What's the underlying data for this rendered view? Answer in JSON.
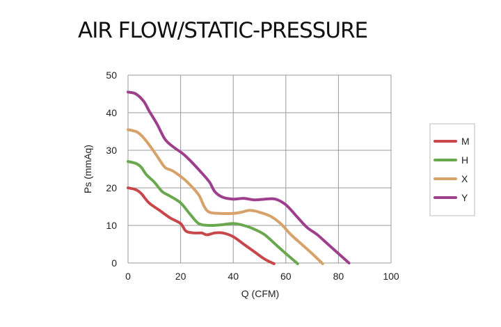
{
  "title": "AIR FLOW/STATIC-PRESSURE",
  "chart_data": {
    "type": "line",
    "title": "AIR FLOW/STATIC-PRESSURE",
    "xlabel": "Q (CFM)",
    "ylabel": "Ps (mmAq)",
    "xlim": [
      0,
      100
    ],
    "ylim": [
      0,
      50
    ],
    "xticks": [
      0,
      20,
      40,
      60,
      80,
      100
    ],
    "yticks": [
      0,
      10,
      20,
      30,
      40,
      50
    ],
    "grid": true,
    "legend_position": "right",
    "series": [
      {
        "name": "M",
        "color": "#c8474b",
        "x": [
          0,
          3,
          5,
          8,
          12,
          16,
          20,
          22,
          25,
          28,
          30,
          33,
          36,
          40,
          44,
          48,
          52,
          55.5
        ],
        "y": [
          20,
          19.5,
          18.5,
          16,
          14,
          12,
          10.5,
          8.5,
          8,
          8,
          7.5,
          8,
          8,
          7,
          5,
          3,
          1,
          -0.2
        ]
      },
      {
        "name": "H",
        "color": "#6aa84f",
        "x": [
          0,
          3,
          5,
          7,
          10,
          13,
          16,
          20,
          23,
          26,
          28,
          32,
          36,
          40,
          44,
          48,
          52,
          56,
          60,
          64.5
        ],
        "y": [
          27,
          26.5,
          25.5,
          23.5,
          21.5,
          19,
          17.8,
          16,
          13.5,
          11,
          10.2,
          10,
          10.2,
          10.5,
          10,
          9,
          7.5,
          5,
          2.5,
          -0.2
        ]
      },
      {
        "name": "X",
        "color": "#d6a26a",
        "x": [
          0,
          3,
          5,
          8,
          11,
          14,
          17,
          21,
          24,
          27,
          29,
          31,
          35,
          40,
          43,
          46,
          49,
          54,
          58,
          62,
          66,
          70,
          74
        ],
        "y": [
          35.5,
          35,
          34,
          31.5,
          28.5,
          25.5,
          24.5,
          22.5,
          20.5,
          18,
          15,
          13.5,
          13.2,
          13.2,
          13.5,
          14,
          13.7,
          12.5,
          10.5,
          7.5,
          5,
          2.5,
          -0.2
        ]
      },
      {
        "name": "Y",
        "color": "#9e3f8e",
        "x": [
          0,
          3,
          6,
          8,
          11,
          14,
          17,
          21,
          24,
          28,
          31,
          33,
          36,
          40,
          44,
          48,
          52,
          56,
          60,
          64,
          68,
          72,
          76,
          80,
          84
        ],
        "y": [
          45.5,
          45,
          43,
          40.5,
          37,
          33,
          31,
          29,
          27,
          24,
          21.5,
          19,
          17.5,
          17,
          17.2,
          16.8,
          17,
          17,
          15.5,
          12.5,
          9.5,
          7.5,
          5,
          2.5,
          0
        ]
      }
    ]
  }
}
